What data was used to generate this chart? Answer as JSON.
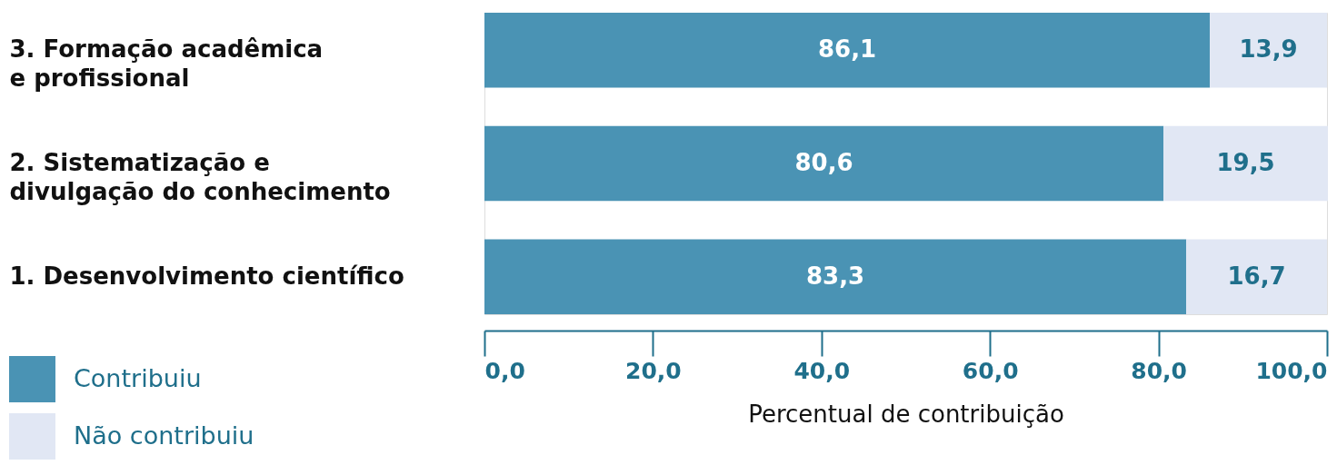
{
  "chart_data": {
    "type": "bar",
    "orientation": "horizontal",
    "stacked": true,
    "categories": [
      "3. Formação acadêmica\ne profissional",
      "2. Sistematização e\ndivulgação do conhecimento",
      "1. Desenvolvimento científico"
    ],
    "series": [
      {
        "name": "Contribuiu",
        "color": "#4a93b4",
        "values": [
          86.1,
          80.6,
          83.3
        ],
        "value_labels": [
          "86,1",
          "80,6",
          "83,3"
        ]
      },
      {
        "name": "Não contribuiu",
        "color": "#e1e7f4",
        "values": [
          13.9,
          19.5,
          16.7
        ],
        "value_labels": [
          "13,9",
          "19,5",
          "16,7"
        ]
      }
    ],
    "xlim": [
      0,
      100
    ],
    "xticks": [
      {
        "value": 0,
        "label": "0,0"
      },
      {
        "value": 20,
        "label": "20,0"
      },
      {
        "value": 40,
        "label": "40,0"
      },
      {
        "value": 60,
        "label": "60,0"
      },
      {
        "value": 80,
        "label": "80,0"
      },
      {
        "value": 100,
        "label": "100,0"
      }
    ],
    "xlabel": "Percentual de contribuição",
    "grid": false,
    "legend": "bottom left"
  }
}
